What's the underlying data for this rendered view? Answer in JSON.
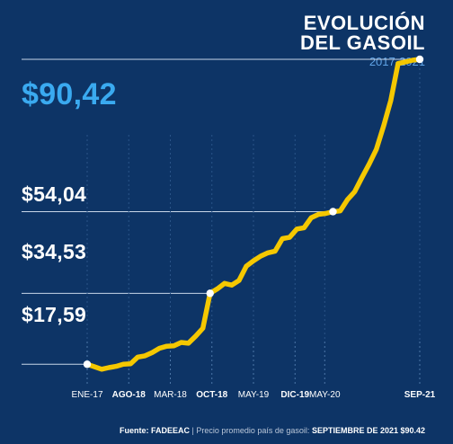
{
  "title_lines": [
    "EVOLUCIÓN",
    "DEL GASOIL"
  ],
  "subtitle": "2017-2021",
  "value_labels": [
    "$90,42",
    "$54,04",
    "$34,53",
    "$17,59"
  ],
  "footer": {
    "source_label": "Fuente: FADEEAC",
    "middle": " | Precio promedio país de gasoil: ",
    "highlight": "SEPTIEMBRE DE 2021 $90.42"
  },
  "colors": {
    "background": "#0d3466",
    "line": "#f5c800",
    "accent": "#3aaaf0"
  },
  "chart_data": {
    "type": "line",
    "title": "EVOLUCIÓN DEL GASOIL",
    "subtitle": "2017-2021",
    "x_ticks": [
      {
        "label": "ENE-17",
        "bold": false,
        "x": 0
      },
      {
        "label": "AGO-18",
        "bold": true,
        "x": 7
      },
      {
        "label": "MAR-18",
        "bold": false,
        "x": 14
      },
      {
        "label": "OCT-18",
        "bold": true,
        "x": 21
      },
      {
        "label": "MAY-19",
        "bold": false,
        "x": 28
      },
      {
        "label": "DIC-19",
        "bold": true,
        "x": 35
      },
      {
        "label": "MAY-20",
        "bold": false,
        "x": 40
      },
      {
        "label": "SEP-21",
        "bold": true,
        "x": 56
      }
    ],
    "x_range": [
      0,
      56
    ],
    "y_range": [
      14,
      96
    ],
    "series": [
      {
        "points": [
          [
            0,
            17.59
          ],
          [
            1,
            17.0
          ],
          [
            2,
            16.4
          ],
          [
            3,
            16.8
          ],
          [
            4,
            17.1
          ],
          [
            5,
            17.6
          ],
          [
            6,
            17.7
          ],
          [
            7,
            19.3
          ],
          [
            8,
            19.6
          ],
          [
            9,
            20.4
          ],
          [
            10,
            21.4
          ],
          [
            11,
            21.9
          ],
          [
            12,
            22.0
          ],
          [
            13,
            22.8
          ],
          [
            14,
            22.6
          ],
          [
            15,
            24.3
          ],
          [
            16,
            26.2
          ],
          [
            17,
            34.53
          ],
          [
            18,
            35.6
          ],
          [
            19,
            36.9
          ],
          [
            20,
            36.5
          ],
          [
            21,
            37.6
          ],
          [
            22,
            41.0
          ],
          [
            23,
            42.3
          ],
          [
            24,
            43.4
          ],
          [
            25,
            44.2
          ],
          [
            26,
            44.6
          ],
          [
            27,
            47.6
          ],
          [
            28,
            47.9
          ],
          [
            29,
            49.9
          ],
          [
            30,
            50.2
          ],
          [
            31,
            52.6
          ],
          [
            32,
            53.4
          ],
          [
            33,
            53.6
          ],
          [
            34,
            54.04
          ],
          [
            35,
            54.2
          ],
          [
            36,
            56.9
          ],
          [
            37,
            58.8
          ],
          [
            38,
            62.2
          ],
          [
            39,
            65.4
          ],
          [
            40,
            68.9
          ],
          [
            41,
            74.5
          ],
          [
            42,
            80.6
          ],
          [
            43,
            89.4
          ],
          [
            44,
            89.8
          ],
          [
            45,
            90.2
          ],
          [
            46,
            90.42
          ]
        ],
        "x_of_index_scale": 1.2174
      }
    ],
    "highlighted_points": [
      {
        "index": 0,
        "value": 17.59,
        "label": "$17,59"
      },
      {
        "index": 17,
        "value": 34.53,
        "label": "$34,53"
      },
      {
        "index": 34,
        "value": 54.04,
        "label": "$54,04"
      },
      {
        "index": 46,
        "value": 90.42,
        "label": "$90,42"
      }
    ]
  }
}
